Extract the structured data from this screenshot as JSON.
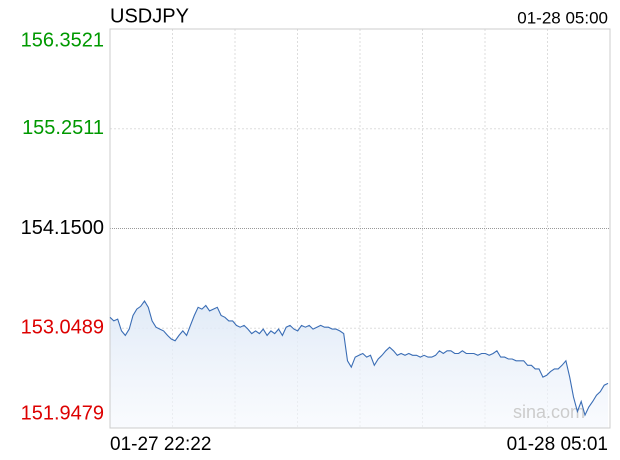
{
  "chart_data": {
    "type": "line",
    "title": "USDJPY",
    "time_label": "01-28 05:00",
    "x_start_label": "01-27 22:22",
    "x_end_label": "01-28 05:01",
    "watermark": "sina.com",
    "ylim": [
      151.9479,
      156.3521
    ],
    "yticks": [
      156.3521,
      155.2511,
      154.15,
      {
        "value": 154.15,
        "label": "154.1500"
      },
      153.0489,
      151.9479
    ],
    "reference_tick": 3,
    "up_color": "#009900",
    "down_color": "#dd0000",
    "flat_color": "#000000",
    "xgrid_divisions": 8,
    "grid": true,
    "series": [
      {
        "name": "USDJPY",
        "color": "#3a6db5",
        "values": [
          153.17,
          153.13,
          153.15,
          153.02,
          152.97,
          153.04,
          153.19,
          153.26,
          153.29,
          153.35,
          153.28,
          153.13,
          153.06,
          153.04,
          153.02,
          152.97,
          152.93,
          152.91,
          152.97,
          153.02,
          152.97,
          153.08,
          153.19,
          153.28,
          153.26,
          153.3,
          153.24,
          153.26,
          153.28,
          153.19,
          153.17,
          153.13,
          153.13,
          153.08,
          153.06,
          153.08,
          153.04,
          152.99,
          153.02,
          152.99,
          153.04,
          152.97,
          153.02,
          152.99,
          153.04,
          152.97,
          153.06,
          153.08,
          153.04,
          153.02,
          153.08,
          153.06,
          153.08,
          153.04,
          153.06,
          153.08,
          153.06,
          153.06,
          153.04,
          153.04,
          153.02,
          152.99,
          152.69,
          152.62,
          152.73,
          152.75,
          152.77,
          152.73,
          152.75,
          152.64,
          152.71,
          152.75,
          152.8,
          152.84,
          152.8,
          152.75,
          152.77,
          152.75,
          152.77,
          152.75,
          152.75,
          152.73,
          152.75,
          152.73,
          152.73,
          152.75,
          152.8,
          152.77,
          152.8,
          152.8,
          152.77,
          152.77,
          152.8,
          152.77,
          152.77,
          152.77,
          152.75,
          152.77,
          152.77,
          152.75,
          152.77,
          152.8,
          152.73,
          152.73,
          152.71,
          152.71,
          152.69,
          152.69,
          152.69,
          152.64,
          152.64,
          152.6,
          152.6,
          152.51,
          152.53,
          152.57,
          152.6,
          152.6,
          152.64,
          152.69,
          152.51,
          152.29,
          152.13,
          152.24,
          152.09,
          152.18,
          152.24,
          152.31,
          152.35,
          152.42,
          152.44
        ]
      }
    ]
  }
}
